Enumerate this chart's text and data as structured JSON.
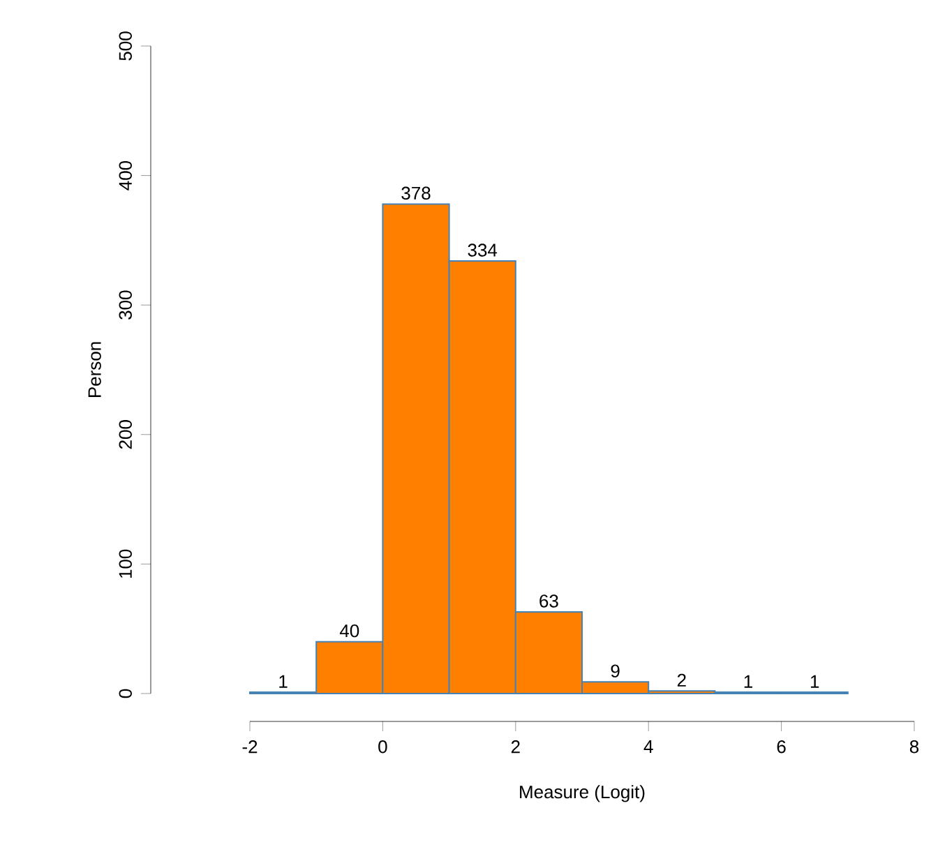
{
  "chart_data": {
    "type": "histogram",
    "xlabel": "Measure (Logit)",
    "ylabel": "Person",
    "bins": [
      -2,
      -1,
      0,
      1,
      2,
      3,
      4,
      5,
      6,
      7
    ],
    "values": [
      1,
      40,
      378,
      334,
      63,
      9,
      2,
      1,
      1
    ],
    "color": "#ff7f00",
    "xlim": [
      -2,
      8
    ],
    "xticks": [
      -2,
      0,
      2,
      4,
      6,
      8
    ],
    "ylim": [
      0,
      500
    ],
    "yticks": [
      0,
      100,
      200,
      300,
      400,
      500
    ],
    "data_labels": true,
    "grid": false
  }
}
